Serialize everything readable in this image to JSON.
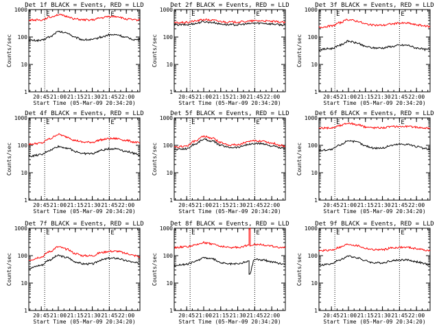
{
  "colors": {
    "events": "#000000",
    "lld": "#ff0000",
    "axes": "#000000",
    "background": "#ffffff"
  },
  "chart_data": [
    {
      "type": "line",
      "title": "Det 1f BLACK = Events, RED = LLD",
      "xlabel": "Start Time (05-Mar-09 20:34:20)",
      "ylabel": "Counts/sec",
      "yscale": "log",
      "ylim": [
        1,
        1000
      ],
      "y_ticklabels": [
        "1",
        "10",
        "100",
        "1000"
      ],
      "x_ticklabels": [
        "20:45",
        "21:00",
        "21:15",
        "21:30",
        "21:45",
        "22:00"
      ],
      "markers": [
        "E",
        "E"
      ],
      "series": [
        {
          "color": "#000000",
          "x": [
            "20:34",
            "20:45",
            "20:52",
            "21:00",
            "21:08",
            "21:15",
            "21:22",
            "21:30",
            "21:38",
            "21:45",
            "21:52",
            "22:00",
            "22:08",
            "22:12"
          ],
          "values": [
            75,
            75,
            100,
            155,
            140,
            95,
            80,
            80,
            100,
            120,
            120,
            95,
            80,
            80
          ]
        },
        {
          "color": "#ff0000",
          "x": [
            "20:34",
            "20:45",
            "20:52",
            "21:00",
            "21:08",
            "21:15",
            "21:22",
            "21:30",
            "21:38",
            "21:45",
            "21:52",
            "22:00",
            "22:08",
            "22:12"
          ],
          "values": [
            420,
            420,
            520,
            650,
            560,
            450,
            420,
            420,
            500,
            560,
            560,
            450,
            420,
            420
          ]
        }
      ]
    },
    {
      "type": "line",
      "title": "Det 2f BLACK = Events, RED = LLD",
      "xlabel": "Start Time (05-Mar-09 20:34:20)",
      "ylabel": "Counts/sec",
      "yscale": "log",
      "ylim": [
        1,
        1000
      ],
      "y_ticklabels": [
        "1",
        "10",
        "100",
        "1000"
      ],
      "x_ticklabels": [
        "20:45",
        "21:00",
        "21:15",
        "21:30",
        "21:45",
        "22:00"
      ],
      "markers": [
        "E",
        "E"
      ],
      "series": [
        {
          "color": "#000000",
          "x": [
            "20:34",
            "20:45",
            "20:52",
            "21:00",
            "21:08",
            "21:15",
            "21:22",
            "21:30",
            "21:38",
            "21:45",
            "21:52",
            "22:00",
            "22:08",
            "22:12"
          ],
          "values": [
            280,
            280,
            310,
            360,
            340,
            300,
            280,
            280,
            300,
            320,
            320,
            300,
            280,
            270
          ]
        },
        {
          "color": "#ff0000",
          "x": [
            "20:34",
            "20:45",
            "20:52",
            "21:00",
            "21:08",
            "21:15",
            "21:22",
            "21:30",
            "21:38",
            "21:45",
            "21:52",
            "22:00",
            "22:08",
            "22:12"
          ],
          "values": [
            330,
            340,
            380,
            430,
            410,
            370,
            350,
            350,
            370,
            390,
            390,
            370,
            350,
            340
          ]
        }
      ]
    },
    {
      "type": "line",
      "title": "Det 3f BLACK = Events, RED = LLD",
      "xlabel": "Start Time (05-Mar-09 20:34:20)",
      "ylabel": "Counts/sec",
      "yscale": "log",
      "ylim": [
        1,
        1000
      ],
      "y_ticklabels": [
        "1",
        "10",
        "100",
        "1000"
      ],
      "x_ticklabels": [
        "20:45",
        "21:00",
        "21:15",
        "21:30",
        "21:45",
        "22:00"
      ],
      "markers": [
        "E",
        "E"
      ],
      "series": [
        {
          "color": "#000000",
          "x": [
            "20:34",
            "20:45",
            "20:52",
            "21:00",
            "21:08",
            "21:15",
            "21:22",
            "21:30",
            "21:38",
            "21:45",
            "21:52",
            "22:00",
            "22:08",
            "22:12"
          ],
          "values": [
            35,
            38,
            50,
            70,
            60,
            45,
            40,
            40,
            45,
            50,
            50,
            40,
            35,
            35
          ]
        },
        {
          "color": "#ff0000",
          "x": [
            "20:34",
            "20:45",
            "20:52",
            "21:00",
            "21:08",
            "21:15",
            "21:22",
            "21:30",
            "21:38",
            "21:45",
            "21:52",
            "22:00",
            "22:08",
            "22:12"
          ],
          "values": [
            230,
            250,
            330,
            430,
            380,
            300,
            270,
            270,
            300,
            320,
            320,
            280,
            250,
            240
          ]
        }
      ]
    },
    {
      "type": "line",
      "title": "Det 4f BLACK = Events, RED = LLD",
      "xlabel": "Start Time (05-Mar-09 20:34:20)",
      "ylabel": "Counts/sec",
      "yscale": "log",
      "ylim": [
        1,
        1000
      ],
      "y_ticklabels": [
        "1",
        "10",
        "100",
        "1000"
      ],
      "x_ticklabels": [
        "20:45",
        "21:00",
        "21:15",
        "21:30",
        "21:45",
        "22:00"
      ],
      "markers": [
        "E",
        "E"
      ],
      "series": [
        {
          "color": "#000000",
          "x": [
            "20:34",
            "20:45",
            "20:52",
            "21:00",
            "21:08",
            "21:15",
            "21:22",
            "21:30",
            "21:38",
            "21:45",
            "21:52",
            "22:00",
            "22:08",
            "22:12"
          ],
          "values": [
            40,
            45,
            65,
            90,
            80,
            60,
            50,
            50,
            65,
            75,
            75,
            60,
            50,
            45
          ]
        },
        {
          "color": "#ff0000",
          "x": [
            "20:34",
            "20:45",
            "20:52",
            "21:00",
            "21:08",
            "21:15",
            "21:22",
            "21:30",
            "21:38",
            "21:45",
            "21:52",
            "22:00",
            "22:08",
            "22:12"
          ],
          "values": [
            110,
            120,
            170,
            250,
            200,
            150,
            130,
            130,
            160,
            175,
            175,
            150,
            130,
            120
          ]
        }
      ]
    },
    {
      "type": "line",
      "title": "Det 5f BLACK = Events, RED = LLD",
      "xlabel": "Start Time (05-Mar-09 20:34:20)",
      "ylabel": "Counts/sec",
      "yscale": "log",
      "ylim": [
        1,
        1000
      ],
      "y_ticklabels": [
        "1",
        "10",
        "100",
        "1000"
      ],
      "x_ticklabels": [
        "20:45",
        "21:00",
        "21:15",
        "21:30",
        "21:45",
        "22:00"
      ],
      "markers": [
        "E",
        "E"
      ],
      "series": [
        {
          "color": "#000000",
          "x": [
            "20:34",
            "20:45",
            "20:52",
            "21:00",
            "21:08",
            "21:15",
            "21:22",
            "21:30",
            "21:38",
            "21:45",
            "21:52",
            "22:00",
            "22:08",
            "22:12"
          ],
          "values": [
            70,
            75,
            110,
            165,
            140,
            100,
            85,
            85,
            105,
            115,
            115,
            95,
            80,
            75
          ]
        },
        {
          "color": "#ff0000",
          "x": [
            "20:34",
            "20:45",
            "20:52",
            "21:00",
            "21:08",
            "21:15",
            "21:22",
            "21:30",
            "21:38",
            "21:45",
            "21:52",
            "22:00",
            "22:08",
            "22:12"
          ],
          "values": [
            85,
            95,
            140,
            210,
            180,
            125,
            105,
            105,
            130,
            145,
            145,
            120,
            100,
            90
          ]
        }
      ]
    },
    {
      "type": "line",
      "title": "Det 6f BLACK = Events, RED = LLD",
      "xlabel": "Start Time (05-Mar-09 20:34:20)",
      "ylabel": "Counts/sec",
      "yscale": "log",
      "ylim": [
        1,
        1000
      ],
      "y_ticklabels": [
        "1",
        "10",
        "100",
        "1000"
      ],
      "x_ticklabels": [
        "20:45",
        "21:00",
        "21:15",
        "21:30",
        "21:45",
        "22:00"
      ],
      "markers": [
        "E",
        "E"
      ],
      "series": [
        {
          "color": "#000000",
          "x": [
            "20:34",
            "20:45",
            "20:52",
            "21:00",
            "21:08",
            "21:15",
            "21:22",
            "21:30",
            "21:38",
            "21:45",
            "21:52",
            "22:00",
            "22:08",
            "22:12"
          ],
          "values": [
            65,
            70,
            100,
            150,
            130,
            95,
            80,
            80,
            100,
            110,
            110,
            90,
            75,
            70
          ]
        },
        {
          "color": "#ff0000",
          "x": [
            "20:34",
            "20:45",
            "20:52",
            "21:00",
            "21:08",
            "21:15",
            "21:22",
            "21:30",
            "21:38",
            "21:45",
            "21:52",
            "22:00",
            "22:08",
            "22:12"
          ],
          "values": [
            420,
            430,
            520,
            650,
            560,
            470,
            440,
            440,
            480,
            490,
            490,
            460,
            430,
            420
          ]
        }
      ]
    },
    {
      "type": "line",
      "title": "Det 7f BLACK = Events, RED = LLD",
      "xlabel": "Start Time (05-Mar-09 20:34:20)",
      "ylabel": "Counts/sec",
      "yscale": "log",
      "ylim": [
        1,
        1000
      ],
      "y_ticklabels": [
        "1",
        "10",
        "100",
        "1000"
      ],
      "x_ticklabels": [
        "20:45",
        "21:00",
        "21:15",
        "21:30",
        "21:45",
        "22:00"
      ],
      "markers": [
        "E",
        "E"
      ],
      "series": [
        {
          "color": "#000000",
          "x": [
            "20:34",
            "20:45",
            "20:52",
            "21:00",
            "21:08",
            "21:15",
            "21:22",
            "21:30",
            "21:38",
            "21:45",
            "21:52",
            "22:00",
            "22:08",
            "22:12"
          ],
          "values": [
            35,
            45,
            70,
            100,
            85,
            60,
            50,
            50,
            70,
            80,
            80,
            65,
            55,
            50
          ]
        },
        {
          "color": "#ff0000",
          "x": [
            "20:34",
            "20:45",
            "20:52",
            "21:00",
            "21:08",
            "21:15",
            "21:22",
            "21:30",
            "21:38",
            "21:45",
            "21:52",
            "22:00",
            "22:08",
            "22:12"
          ],
          "values": [
            70,
            90,
            140,
            210,
            170,
            120,
            100,
            100,
            130,
            145,
            145,
            120,
            100,
            90
          ]
        }
      ]
    },
    {
      "type": "line",
      "title": "Det 8f BLACK = Events, RED = LLD",
      "xlabel": "Start Time (05-Mar-09 20:34:20)",
      "ylabel": "Counts/sec",
      "yscale": "log",
      "ylim": [
        1,
        1000
      ],
      "y_ticklabels": [
        "1",
        "10",
        "100",
        "1000"
      ],
      "x_ticklabels": [
        "20:45",
        "21:00",
        "21:15",
        "21:30",
        "21:45",
        "22:00"
      ],
      "markers": [
        "E",
        "E"
      ],
      "series": [
        {
          "color": "#000000",
          "x": [
            "20:34",
            "20:45",
            "20:52",
            "21:00",
            "21:08",
            "21:15",
            "21:22",
            "21:30",
            "21:38",
            "21:40",
            "21:40",
            "21:45",
            "21:52",
            "22:00",
            "22:08",
            "22:12"
          ],
          "values": [
            45,
            48,
            60,
            85,
            75,
            55,
            50,
            50,
            60,
            65,
            20,
            75,
            70,
            60,
            52,
            50
          ]
        },
        {
          "color": "#ff0000",
          "x": [
            "20:34",
            "20:45",
            "20:52",
            "21:00",
            "21:08",
            "21:15",
            "21:22",
            "21:30",
            "21:38",
            "21:40",
            "21:40",
            "21:41",
            "21:41",
            "21:45",
            "21:52",
            "22:00",
            "22:08",
            "22:12"
          ],
          "values": [
            200,
            210,
            240,
            300,
            270,
            220,
            200,
            200,
            230,
            240,
            1000,
            1000,
            240,
            260,
            250,
            220,
            200,
            195
          ]
        }
      ]
    },
    {
      "type": "line",
      "title": "Det 9f BLACK = Events, RED = LLD",
      "xlabel": "Start Time (05-Mar-09 20:34:20)",
      "ylabel": "Counts/sec",
      "yscale": "log",
      "ylim": [
        1,
        1000
      ],
      "y_ticklabels": [
        "1",
        "10",
        "100",
        "1000"
      ],
      "x_ticklabels": [
        "20:45",
        "21:00",
        "21:15",
        "21:30",
        "21:45",
        "22:00"
      ],
      "markers": [
        "E",
        "E"
      ],
      "series": [
        {
          "color": "#000000",
          "x": [
            "20:34",
            "20:45",
            "20:52",
            "21:00",
            "21:08",
            "21:15",
            "21:22",
            "21:30",
            "21:38",
            "21:45",
            "21:52",
            "22:00",
            "22:08",
            "22:12"
          ],
          "values": [
            45,
            50,
            70,
            95,
            85,
            65,
            55,
            55,
            65,
            70,
            70,
            60,
            50,
            45
          ]
        },
        {
          "color": "#ff0000",
          "x": [
            "20:34",
            "20:45",
            "20:52",
            "21:00",
            "21:08",
            "21:15",
            "21:22",
            "21:30",
            "21:38",
            "21:45",
            "21:52",
            "22:00",
            "22:08",
            "22:12"
          ],
          "values": [
            150,
            160,
            200,
            260,
            230,
            185,
            165,
            165,
            190,
            200,
            200,
            180,
            160,
            150
          ]
        }
      ]
    }
  ]
}
